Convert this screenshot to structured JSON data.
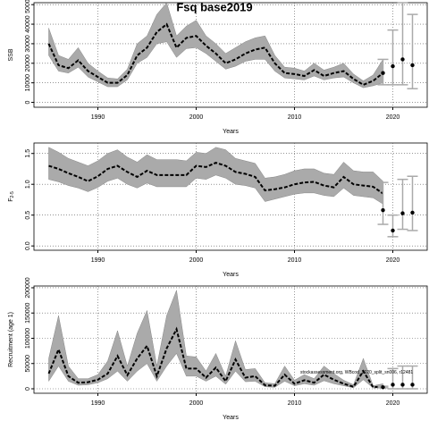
{
  "chart_data": [
    {
      "type": "line",
      "title": "Fsq base2019",
      "ylabel": "SSB",
      "xlabel": "Years",
      "xlim": [
        1983.5,
        2023.5
      ],
      "xticks": [
        1990,
        2000,
        2010,
        2020
      ],
      "ylim": [
        -2500,
        51000
      ],
      "yticks": [
        0,
        10000,
        20000,
        30000,
        40000,
        50000
      ],
      "grid": true,
      "x": [
        1985,
        1986,
        1987,
        1988,
        1989,
        1990,
        1991,
        1992,
        1993,
        1994,
        1995,
        1996,
        1997,
        1998,
        1999,
        2000,
        2001,
        2002,
        2003,
        2004,
        2005,
        2006,
        2007,
        2008,
        2009,
        2010,
        2011,
        2012,
        2013,
        2014,
        2015,
        2016,
        2017,
        2018,
        2019
      ],
      "estimate": [
        30000,
        19000,
        17500,
        21500,
        16000,
        13000,
        10000,
        10000,
        14000,
        24000,
        28000,
        36000,
        40000,
        28000,
        33000,
        34000,
        29000,
        25000,
        20000,
        22000,
        25000,
        27000,
        28000,
        20000,
        15000,
        14500,
        13500,
        16500,
        13500,
        15000,
        16000,
        12000,
        9000,
        11000,
        15000
      ],
      "upper": [
        38000,
        24000,
        22000,
        28000,
        20000,
        16000,
        12500,
        12000,
        17000,
        30000,
        34000,
        45000,
        51000,
        34000,
        39000,
        42000,
        34000,
        30000,
        25000,
        28000,
        31000,
        33000,
        34000,
        24000,
        18000,
        17500,
        16000,
        20000,
        16500,
        18000,
        20000,
        14500,
        11000,
        14000,
        22000
      ],
      "lower": [
        24000,
        16000,
        15000,
        18000,
        13000,
        10500,
        8000,
        8000,
        11500,
        20000,
        23000,
        30000,
        31000,
        23000,
        27500,
        28000,
        25000,
        21000,
        17000,
        18500,
        21000,
        22000,
        22000,
        16000,
        12500,
        12000,
        11500,
        13500,
        11500,
        12500,
        13000,
        10000,
        7500,
        8500,
        10000
      ],
      "proj_x": [
        2019,
        2020,
        2021,
        2022
      ],
      "proj_values": [
        15000,
        18500,
        22000,
        19000
      ],
      "proj_lower": [
        9000,
        9000,
        9000,
        7000
      ],
      "proj_upper": [
        22000,
        37000,
        51000,
        45000
      ]
    },
    {
      "type": "line",
      "ylabel": "F",
      "ylabel_sub": "2-5",
      "xlabel": "Years",
      "xlim": [
        1983.5,
        2023.5
      ],
      "xticks": [
        1990,
        2000,
        2010,
        2020
      ],
      "ylim": [
        -0.07,
        1.67
      ],
      "yticks": [
        {
          "value": 0,
          "label": "0.0"
        },
        0.5,
        {
          "value": 1,
          "label": "1.0"
        },
        1.5
      ],
      "grid": true,
      "x": [
        1985,
        1986,
        1987,
        1988,
        1989,
        1990,
        1991,
        1992,
        1993,
        1994,
        1995,
        1996,
        1997,
        1998,
        1999,
        2000,
        2001,
        2002,
        2003,
        2004,
        2005,
        2006,
        2007,
        2008,
        2009,
        2010,
        2011,
        2012,
        2013,
        2014,
        2015,
        2016,
        2017,
        2018,
        2019
      ],
      "estimate": [
        1.3,
        1.25,
        1.18,
        1.12,
        1.05,
        1.13,
        1.25,
        1.3,
        1.2,
        1.12,
        1.22,
        1.15,
        1.15,
        1.15,
        1.15,
        1.3,
        1.28,
        1.35,
        1.3,
        1.2,
        1.17,
        1.12,
        0.9,
        0.92,
        0.95,
        1.0,
        1.03,
        1.04,
        0.98,
        0.95,
        1.12,
        1.0,
        0.98,
        0.96,
        0.85
      ],
      "upper": [
        1.6,
        1.52,
        1.42,
        1.36,
        1.3,
        1.38,
        1.5,
        1.56,
        1.44,
        1.36,
        1.48,
        1.4,
        1.4,
        1.4,
        1.38,
        1.52,
        1.5,
        1.6,
        1.56,
        1.42,
        1.38,
        1.34,
        1.1,
        1.12,
        1.16,
        1.22,
        1.25,
        1.25,
        1.18,
        1.16,
        1.36,
        1.22,
        1.2,
        1.2,
        1.05
      ],
      "lower": [
        1.08,
        1.04,
        0.98,
        0.94,
        0.88,
        0.95,
        1.05,
        1.1,
        1.0,
        0.94,
        1.02,
        0.96,
        0.96,
        0.96,
        0.96,
        1.1,
        1.08,
        1.15,
        1.1,
        1.0,
        0.98,
        0.94,
        0.72,
        0.76,
        0.8,
        0.84,
        0.86,
        0.86,
        0.82,
        0.8,
        0.94,
        0.82,
        0.8,
        0.78,
        0.68
      ],
      "proj_x": [
        2019,
        2020,
        2021,
        2022
      ],
      "proj_values": [
        0.58,
        0.25,
        0.53,
        0.54
      ],
      "proj_lower": [
        0.35,
        0.15,
        0.27,
        0.25
      ],
      "proj_upper": [
        1.03,
        0.5,
        1.08,
        1.13
      ]
    },
    {
      "type": "line",
      "ylabel": "Recruitment (age 1)",
      "xlabel": "Years",
      "annotation": "stockassessment.org, WBcod_2020_split_sn006, r12481",
      "xlim": [
        1983.5,
        2023.5
      ],
      "xticks": [
        1990,
        2000,
        2010,
        2020
      ],
      "ylim": [
        -8850,
        203500
      ],
      "yticks": [
        0,
        50000,
        100000,
        150000,
        200000
      ],
      "grid": true,
      "x": [
        1985,
        1986,
        1987,
        1988,
        1989,
        1990,
        1991,
        1992,
        1993,
        1994,
        1995,
        1996,
        1997,
        1998,
        1999,
        2000,
        2001,
        2002,
        2003,
        2004,
        2005,
        2006,
        2007,
        2008,
        2009,
        2010,
        2011,
        2012,
        2013,
        2014,
        2015,
        2016,
        2017,
        2018,
        2019
      ],
      "estimate": [
        30000,
        78000,
        25000,
        12000,
        13000,
        18000,
        30000,
        65000,
        27000,
        60000,
        85000,
        25000,
        80000,
        118000,
        40000,
        40000,
        22000,
        42000,
        15000,
        58000,
        22000,
        25000,
        7000,
        6000,
        28000,
        10000,
        17000,
        12000,
        28000,
        18000,
        10000,
        4000,
        35000,
        3000,
        5000
      ],
      "upper": [
        60000,
        145000,
        45000,
        20000,
        20000,
        28000,
        55000,
        115000,
        45000,
        110000,
        155000,
        45000,
        145000,
        195000,
        65000,
        63000,
        35000,
        70000,
        25000,
        95000,
        38000,
        40000,
        12000,
        10000,
        45000,
        17000,
        28000,
        20000,
        45000,
        30000,
        17000,
        8000,
        60000,
        6000,
        10000
      ],
      "lower": [
        15000,
        45000,
        15000,
        7000,
        8000,
        12000,
        20000,
        35000,
        15000,
        35000,
        50000,
        15000,
        45000,
        70000,
        25000,
        25000,
        15000,
        25000,
        9000,
        35000,
        14000,
        15000,
        4000,
        3000,
        15000,
        6000,
        10000,
        7000,
        16000,
        10000,
        6000,
        2000,
        18000,
        1500,
        2000
      ],
      "proj_x": [
        2019,
        2020,
        2021,
        2022
      ],
      "proj_values": [
        3000,
        8000,
        8000,
        8000
      ],
      "proj_lower": [
        2000,
        0,
        0,
        0
      ],
      "proj_upper": [
        5000,
        40000,
        45000,
        45000
      ]
    }
  ]
}
